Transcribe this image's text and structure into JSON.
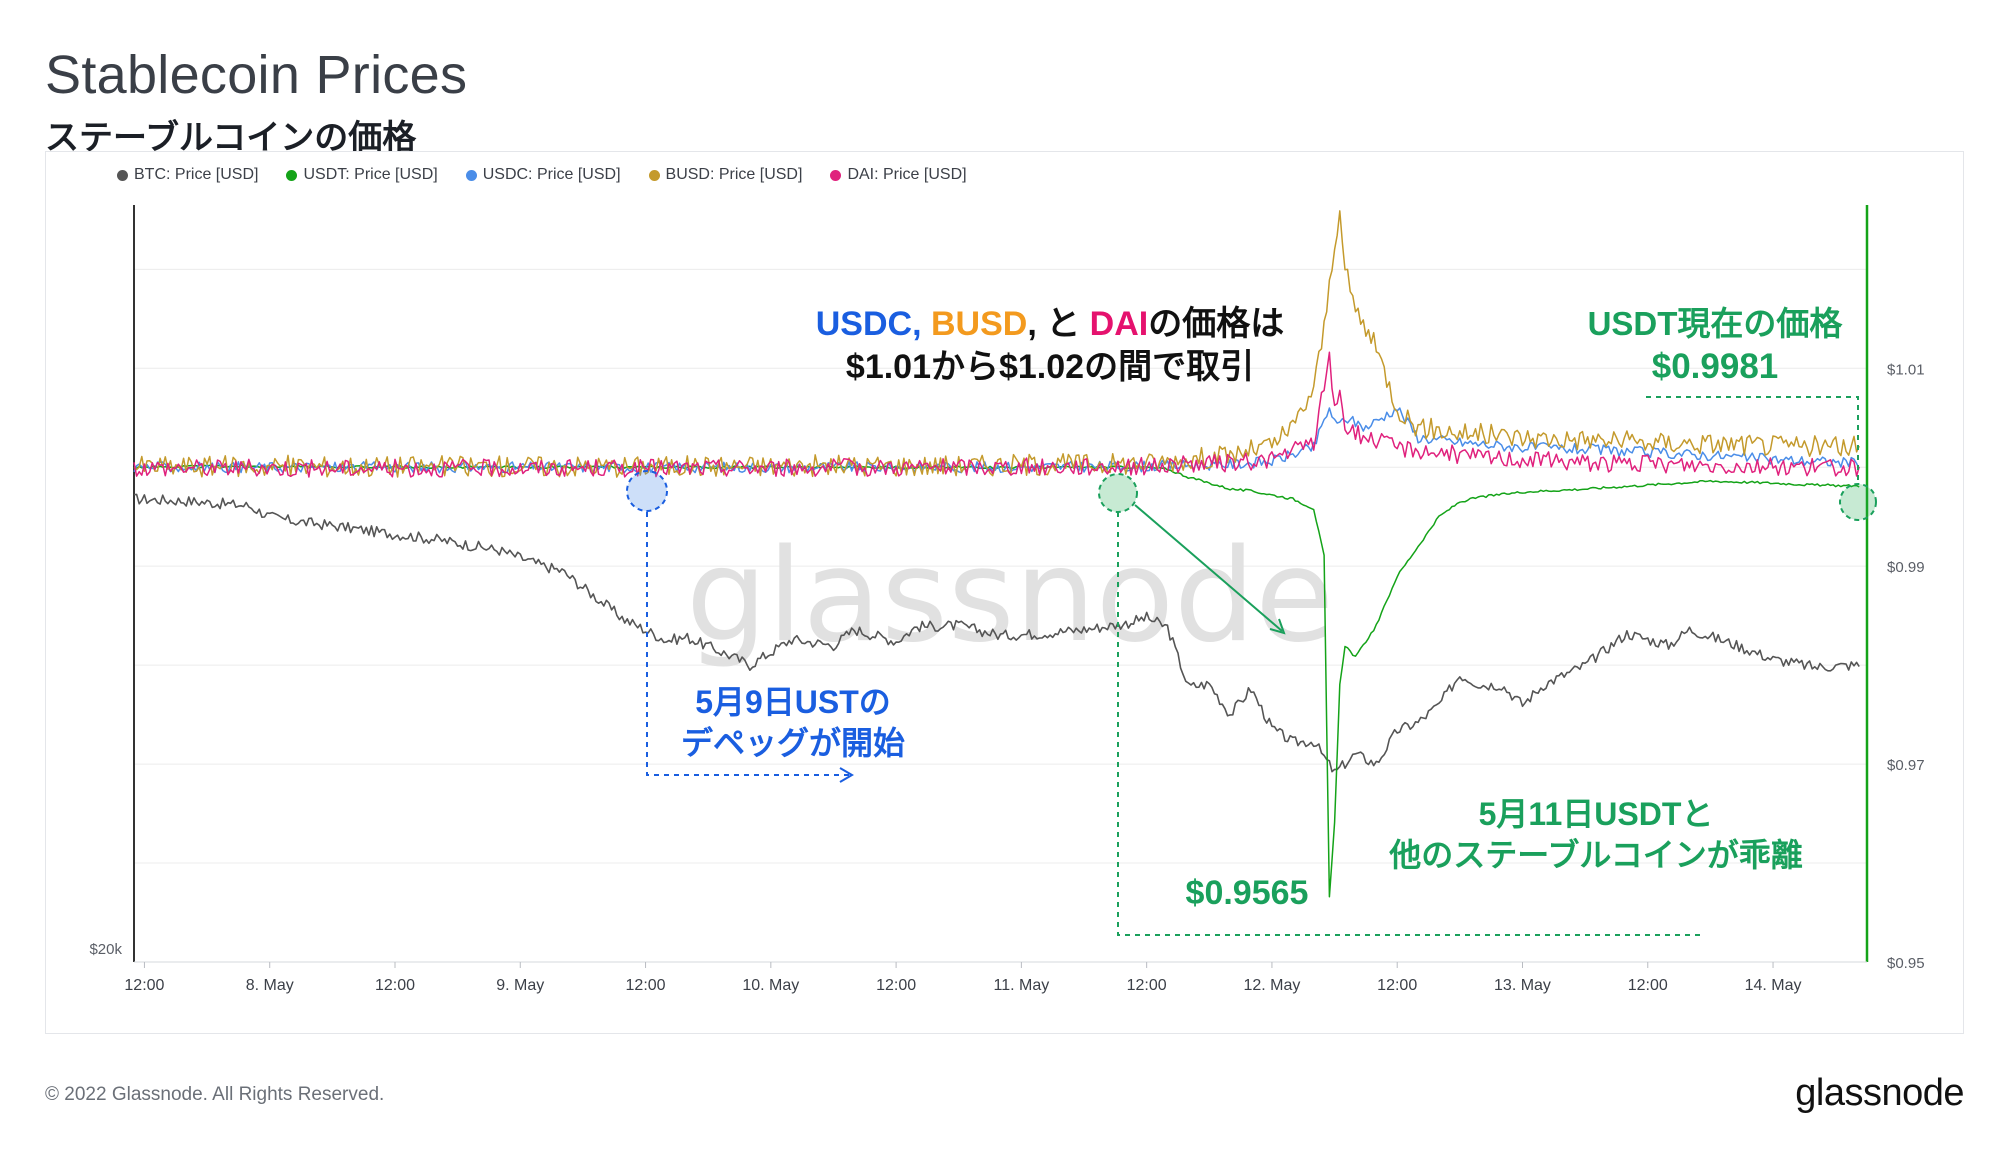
{
  "header": {
    "title": "Stablecoin Prices",
    "subtitle": "ステーブルコインの価格"
  },
  "footer": {
    "copyright": "© 2022 Glassnode. All Rights Reserved.",
    "brand": "glassnode"
  },
  "watermark": "glassnode",
  "colors": {
    "btc": "#555555",
    "usdt": "#14a318",
    "usdc": "#4a8de8",
    "busd": "#c49a2c",
    "dai": "#e0217d",
    "annotation_green": "#1aa05c",
    "annotation_blue": "#1a5ee0",
    "annotation_orange": "#f39a1e",
    "annotation_pink": "#e5126e"
  },
  "annotations": {
    "range_line1_usdc": "USDC, ",
    "range_line1_busd": "BUSD",
    "range_line1_mid": ", と ",
    "range_line1_dai": "DAI",
    "range_line1_tail": "の価格は",
    "range_line2": "$1.01から$1.02の間で取引",
    "usdt_current_label": "USDT現在の価格",
    "usdt_current_value": "$0.9981",
    "depeg_line1": "5月9日USTの",
    "depeg_line2": "デペッグが開始",
    "diverge_line1": "5月11日USDTと",
    "diverge_line2": "他のステーブルコインが乖離",
    "usdt_low": "$0.9565"
  },
  "chart_data": {
    "type": "line",
    "legend_position": "top-left",
    "grid": true,
    "x_tick_labels": [
      "12:00",
      "8. May",
      "12:00",
      "9. May",
      "12:00",
      "10. May",
      "12:00",
      "11. May",
      "12:00",
      "12. May",
      "12:00",
      "13. May",
      "12:00",
      "14. May"
    ],
    "x_ticks_hours": [
      12,
      24,
      36,
      48,
      60,
      72,
      84,
      96,
      108,
      120,
      132,
      144,
      156,
      168
    ],
    "x_range_hours": [
      11,
      177
    ],
    "y_right": {
      "tick_labels": [
        "$1.01",
        "$0.99",
        "$0.97",
        "$0.95"
      ],
      "ticks": [
        1.01,
        0.99,
        0.97,
        0.95
      ],
      "range": [
        0.95,
        1.0265
      ]
    },
    "y_left": {
      "tick_labels": [
        "$20k"
      ],
      "ticks": [
        20000
      ]
    },
    "series": [
      {
        "name": "BTC: Price [USD]",
        "axis": "left",
        "color_key": "btc",
        "x": [
          11,
          16,
          22,
          24,
          26,
          30,
          34,
          40,
          46,
          50,
          52,
          58,
          62,
          64,
          68,
          70,
          74,
          78,
          80,
          84,
          86,
          90,
          94,
          98,
          102,
          106,
          108,
          110,
          112,
          114,
          116,
          118,
          120,
          122,
          124,
          126,
          128,
          130,
          132,
          134,
          136,
          138,
          140,
          142,
          144,
          146,
          150,
          154,
          158,
          160,
          164,
          168,
          172,
          176
        ],
        "y": [
          0.9968,
          0.9966,
          0.9961,
          0.995,
          0.9946,
          0.9941,
          0.9935,
          0.9927,
          0.9916,
          0.9901,
          0.9895,
          0.9846,
          0.9825,
          0.9828,
          0.981,
          0.98,
          0.9826,
          0.982,
          0.9836,
          0.9824,
          0.9839,
          0.984,
          0.983,
          0.9832,
          0.9836,
          0.9842,
          0.9848,
          0.9838,
          0.9778,
          0.9781,
          0.975,
          0.9776,
          0.9736,
          0.9722,
          0.9723,
          0.9691,
          0.971,
          0.97,
          0.9734,
          0.9742,
          0.976,
          0.979,
          0.978,
          0.978,
          0.976,
          0.978,
          0.98,
          0.9832,
          0.982,
          0.9836,
          0.9822,
          0.9806,
          0.9798,
          0.98
        ]
      },
      {
        "name": "USDT: Price [USD]",
        "axis": "right",
        "color_key": "usdt",
        "x": [
          11,
          20,
          40,
          60,
          80,
          100,
          108,
          110,
          112,
          114,
          116,
          118,
          120,
          122,
          124,
          125,
          125.5,
          126,
          126.5,
          127,
          128,
          130,
          132,
          134,
          136,
          138,
          140,
          144,
          150,
          156,
          162,
          168,
          172,
          177
        ],
        "y": [
          1.0,
          1.0001,
          1.0,
          1.0,
          1.0,
          1.0,
          1.0,
          0.9998,
          0.999,
          0.9984,
          0.9978,
          0.9976,
          0.9972,
          0.9968,
          0.9958,
          0.991,
          0.9565,
          0.964,
          0.978,
          0.982,
          0.9808,
          0.984,
          0.989,
          0.992,
          0.995,
          0.9965,
          0.997,
          0.9975,
          0.9978,
          0.9982,
          0.9986,
          0.9984,
          0.9982,
          0.9981
        ]
      },
      {
        "name": "USDC: Price [USD]",
        "axis": "right",
        "color_key": "usdc",
        "x": [
          11,
          30,
          60,
          90,
          108,
          112,
          116,
          120,
          124,
          125.5,
          126.2,
          127,
          129,
          132,
          134,
          138,
          144,
          150,
          156,
          162,
          168,
          172,
          177
        ],
        "y": [
          1.0,
          1.0,
          1.0,
          1.0,
          1.0001,
          1.0002,
          1.0003,
          1.0006,
          1.002,
          1.006,
          1.004,
          1.005,
          1.004,
          1.006,
          1.003,
          1.0025,
          1.002,
          1.0018,
          1.0015,
          1.0012,
          1.0008,
          1.0006,
          1.0004
        ]
      },
      {
        "name": "BUSD: Price [USD]",
        "axis": "right",
        "color_key": "busd",
        "x": [
          11,
          30,
          60,
          90,
          108,
          112,
          116,
          120,
          122,
          124,
          125,
          126,
          126.5,
          127,
          128,
          130,
          132,
          134,
          138,
          144,
          150,
          156,
          162,
          168,
          172,
          177
        ],
        "y": [
          1.0001,
          1.0001,
          1.0001,
          1.0002,
          1.0004,
          1.0008,
          1.0012,
          1.0022,
          1.004,
          1.008,
          1.014,
          1.023,
          1.0248,
          1.02,
          1.016,
          1.012,
          1.006,
          1.004,
          1.0035,
          1.003,
          1.0028,
          1.0025,
          1.0024,
          1.0022,
          1.0021,
          1.002
        ]
      },
      {
        "name": "DAI: Price [USD]",
        "axis": "right",
        "color_key": "dai",
        "x": [
          11,
          30,
          60,
          90,
          108,
          112,
          116,
          120,
          124,
          125.5,
          126,
          126.5,
          127,
          129,
          132,
          136,
          140,
          144,
          150,
          156,
          162,
          168,
          172,
          177
        ],
        "y": [
          1.0,
          0.9999,
          0.9999,
          1.0,
          1.0001,
          1.0003,
          1.0004,
          1.0008,
          1.0025,
          1.011,
          1.006,
          1.008,
          1.004,
          1.003,
          1.002,
          1.0015,
          1.001,
          1.0008,
          1.0005,
          1.0003,
          1.0002,
          1.0001,
          1.0,
          0.9999
        ]
      }
    ]
  }
}
